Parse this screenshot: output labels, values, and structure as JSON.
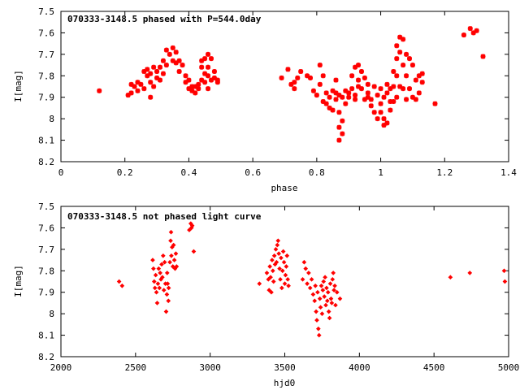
{
  "colors": {
    "points": "#ff0000",
    "axes": "#000000",
    "background": "#ffffff"
  },
  "chart_data": [
    {
      "type": "scatter",
      "title": "070333-3148.5 phased with P=544.0day",
      "xlabel": "phase",
      "ylabel": "I[mag]",
      "xlim": [
        0,
        1.4
      ],
      "ylim": [
        7.5,
        8.2
      ],
      "y_inverted": true,
      "grid": false,
      "x_ticks": [
        "0",
        "0.2",
        "0.4",
        "0.6",
        "0.8",
        "1",
        "1.2",
        "1.4"
      ],
      "y_ticks": [
        "7.5",
        "7.6",
        "7.7",
        "7.8",
        "7.9",
        "8",
        "8.1",
        "8.2"
      ],
      "marker": "star",
      "points": [
        [
          0.12,
          7.87
        ],
        [
          0.21,
          7.89
        ],
        [
          0.22,
          7.84
        ],
        [
          0.22,
          7.88
        ],
        [
          0.23,
          7.85
        ],
        [
          0.24,
          7.83
        ],
        [
          0.24,
          7.87
        ],
        [
          0.25,
          7.84
        ],
        [
          0.26,
          7.78
        ],
        [
          0.26,
          7.86
        ],
        [
          0.27,
          7.77
        ],
        [
          0.27,
          7.8
        ],
        [
          0.28,
          7.79
        ],
        [
          0.28,
          7.83
        ],
        [
          0.28,
          7.9
        ],
        [
          0.29,
          7.76
        ],
        [
          0.29,
          7.85
        ],
        [
          0.3,
          7.78
        ],
        [
          0.3,
          7.81
        ],
        [
          0.31,
          7.76
        ],
        [
          0.31,
          7.82
        ],
        [
          0.32,
          7.73
        ],
        [
          0.32,
          7.79
        ],
        [
          0.33,
          7.68
        ],
        [
          0.33,
          7.75
        ],
        [
          0.34,
          7.7
        ],
        [
          0.35,
          7.67
        ],
        [
          0.35,
          7.73
        ],
        [
          0.36,
          7.69
        ],
        [
          0.36,
          7.74
        ],
        [
          0.37,
          7.73
        ],
        [
          0.37,
          7.78
        ],
        [
          0.38,
          7.75
        ],
        [
          0.39,
          7.8
        ],
        [
          0.39,
          7.83
        ],
        [
          0.4,
          7.82
        ],
        [
          0.4,
          7.86
        ],
        [
          0.41,
          7.85
        ],
        [
          0.41,
          7.87
        ],
        [
          0.42,
          7.85
        ],
        [
          0.42,
          7.88
        ],
        [
          0.43,
          7.86
        ],
        [
          0.43,
          7.84
        ],
        [
          0.44,
          7.82
        ],
        [
          0.44,
          7.76
        ],
        [
          0.44,
          7.73
        ],
        [
          0.45,
          7.79
        ],
        [
          0.45,
          7.72
        ],
        [
          0.45,
          7.83
        ],
        [
          0.46,
          7.7
        ],
        [
          0.46,
          7.76
        ],
        [
          0.46,
          7.8
        ],
        [
          0.46,
          7.86
        ],
        [
          0.47,
          7.72
        ],
        [
          0.47,
          7.82
        ],
        [
          0.48,
          7.78
        ],
        [
          0.48,
          7.81
        ],
        [
          0.49,
          7.82
        ],
        [
          0.49,
          7.83
        ],
        [
          0.69,
          7.81
        ],
        [
          0.71,
          7.77
        ],
        [
          0.72,
          7.84
        ],
        [
          0.73,
          7.86
        ],
        [
          0.73,
          7.83
        ],
        [
          0.74,
          7.81
        ],
        [
          0.75,
          7.78
        ],
        [
          0.77,
          7.8
        ],
        [
          0.78,
          7.81
        ],
        [
          0.79,
          7.87
        ],
        [
          0.8,
          7.89
        ],
        [
          0.81,
          7.75
        ],
        [
          0.81,
          7.84
        ],
        [
          0.82,
          7.92
        ],
        [
          0.82,
          7.8
        ],
        [
          0.83,
          7.88
        ],
        [
          0.83,
          7.93
        ],
        [
          0.84,
          7.9
        ],
        [
          0.84,
          7.95
        ],
        [
          0.85,
          7.87
        ],
        [
          0.85,
          7.96
        ],
        [
          0.86,
          7.88
        ],
        [
          0.86,
          7.91
        ],
        [
          0.86,
          7.82
        ],
        [
          0.87,
          7.89
        ],
        [
          0.87,
          7.97
        ],
        [
          0.87,
          8.04
        ],
        [
          0.87,
          8.1
        ],
        [
          0.88,
          7.9
        ],
        [
          0.88,
          8.01
        ],
        [
          0.88,
          8.07
        ],
        [
          0.89,
          7.87
        ],
        [
          0.89,
          7.93
        ],
        [
          0.9,
          7.9
        ],
        [
          0.9,
          7.88
        ],
        [
          0.91,
          7.86
        ],
        [
          0.91,
          7.8
        ],
        [
          0.92,
          7.89
        ],
        [
          0.92,
          7.76
        ],
        [
          0.92,
          7.91
        ],
        [
          0.93,
          7.75
        ],
        [
          0.93,
          7.82
        ],
        [
          0.93,
          7.85
        ],
        [
          0.94,
          7.78
        ],
        [
          0.94,
          7.86
        ],
        [
          0.95,
          7.91
        ],
        [
          0.95,
          7.81
        ],
        [
          0.96,
          7.9
        ],
        [
          0.96,
          7.84
        ],
        [
          0.96,
          7.88
        ],
        [
          0.97,
          7.91
        ],
        [
          0.97,
          7.94
        ],
        [
          0.98,
          7.85
        ],
        [
          0.98,
          7.97
        ],
        [
          0.99,
          7.89
        ],
        [
          0.99,
          8.0
        ],
        [
          1.0,
          7.86
        ],
        [
          1.0,
          7.93
        ],
        [
          1.0,
          7.97
        ],
        [
          1.01,
          7.9
        ],
        [
          1.01,
          8.0
        ],
        [
          1.01,
          8.03
        ],
        [
          1.02,
          7.84
        ],
        [
          1.02,
          7.88
        ],
        [
          1.02,
          8.02
        ],
        [
          1.03,
          7.86
        ],
        [
          1.03,
          7.92
        ],
        [
          1.03,
          7.96
        ],
        [
          1.04,
          7.78
        ],
        [
          1.04,
          7.85
        ],
        [
          1.04,
          7.92
        ],
        [
          1.05,
          7.66
        ],
        [
          1.05,
          7.72
        ],
        [
          1.05,
          7.8
        ],
        [
          1.05,
          7.9
        ],
        [
          1.06,
          7.62
        ],
        [
          1.06,
          7.69
        ],
        [
          1.06,
          7.85
        ],
        [
          1.07,
          7.63
        ],
        [
          1.07,
          7.75
        ],
        [
          1.07,
          7.86
        ],
        [
          1.08,
          7.7
        ],
        [
          1.08,
          7.8
        ],
        [
          1.08,
          7.91
        ],
        [
          1.09,
          7.72
        ],
        [
          1.09,
          7.86
        ],
        [
          1.1,
          7.75
        ],
        [
          1.1,
          7.9
        ],
        [
          1.11,
          7.91
        ],
        [
          1.11,
          7.82
        ],
        [
          1.12,
          7.8
        ],
        [
          1.12,
          7.88
        ],
        [
          1.13,
          7.79
        ],
        [
          1.13,
          7.83
        ],
        [
          1.17,
          7.93
        ],
        [
          1.26,
          7.61
        ],
        [
          1.28,
          7.58
        ],
        [
          1.29,
          7.6
        ],
        [
          1.3,
          7.59
        ],
        [
          1.32,
          7.71
        ]
      ]
    },
    {
      "type": "scatter",
      "title": "070333-3148.5 not phased light curve",
      "xlabel": "hjd0",
      "ylabel": "I[mag]",
      "xlim": [
        2000,
        5000
      ],
      "ylim": [
        7.5,
        8.2
      ],
      "y_inverted": true,
      "grid": false,
      "x_ticks": [
        "2000",
        "2500",
        "3000",
        "3500",
        "4000",
        "4500",
        "5000"
      ],
      "y_ticks": [
        "7.5",
        "7.6",
        "7.7",
        "7.8",
        "7.9",
        "8",
        "8.1",
        "8.2"
      ],
      "marker": "diamond",
      "points": [
        [
          2390,
          7.85
        ],
        [
          2410,
          7.87
        ],
        [
          2615,
          7.75
        ],
        [
          2620,
          7.79
        ],
        [
          2625,
          7.85
        ],
        [
          2630,
          7.88
        ],
        [
          2635,
          7.82
        ],
        [
          2640,
          7.9
        ],
        [
          2645,
          7.95
        ],
        [
          2650,
          7.86
        ],
        [
          2655,
          7.79
        ],
        [
          2660,
          7.88
        ],
        [
          2665,
          7.81
        ],
        [
          2670,
          7.84
        ],
        [
          2675,
          7.77
        ],
        [
          2680,
          7.83
        ],
        [
          2685,
          7.73
        ],
        [
          2690,
          7.89
        ],
        [
          2695,
          7.76
        ],
        [
          2700,
          7.86
        ],
        [
          2705,
          7.99
        ],
        [
          2710,
          7.91
        ],
        [
          2712,
          7.81
        ],
        [
          2715,
          7.86
        ],
        [
          2720,
          7.94
        ],
        [
          2722,
          7.88
        ],
        [
          2730,
          7.76
        ],
        [
          2735,
          7.66
        ],
        [
          2738,
          7.62
        ],
        [
          2740,
          7.73
        ],
        [
          2745,
          7.69
        ],
        [
          2750,
          7.78
        ],
        [
          2755,
          7.68
        ],
        [
          2760,
          7.75
        ],
        [
          2765,
          7.79
        ],
        [
          2770,
          7.72
        ],
        [
          2775,
          7.78
        ],
        [
          2860,
          7.61
        ],
        [
          2870,
          7.58
        ],
        [
          2875,
          7.6
        ],
        [
          2880,
          7.59
        ],
        [
          2890,
          7.71
        ],
        [
          3330,
          7.86
        ],
        [
          3380,
          7.81
        ],
        [
          3390,
          7.84
        ],
        [
          3395,
          7.89
        ],
        [
          3400,
          7.78
        ],
        [
          3405,
          7.83
        ],
        [
          3410,
          7.9
        ],
        [
          3415,
          7.75
        ],
        [
          3420,
          7.8
        ],
        [
          3425,
          7.85
        ],
        [
          3430,
          7.73
        ],
        [
          3435,
          7.77
        ],
        [
          3440,
          7.7
        ],
        [
          3445,
          7.76
        ],
        [
          3450,
          7.68
        ],
        [
          3455,
          7.66
        ],
        [
          3460,
          7.72
        ],
        [
          3465,
          7.79
        ],
        [
          3470,
          7.84
        ],
        [
          3475,
          7.74
        ],
        [
          3480,
          7.88
        ],
        [
          3485,
          7.8
        ],
        [
          3490,
          7.71
        ],
        [
          3495,
          7.76
        ],
        [
          3500,
          7.86
        ],
        [
          3505,
          7.82
        ],
        [
          3510,
          7.78
        ],
        [
          3515,
          7.73
        ],
        [
          3520,
          7.84
        ],
        [
          3525,
          7.87
        ],
        [
          3620,
          7.84
        ],
        [
          3630,
          7.76
        ],
        [
          3640,
          7.79
        ],
        [
          3650,
          7.86
        ],
        [
          3660,
          7.81
        ],
        [
          3670,
          7.88
        ],
        [
          3680,
          7.84
        ],
        [
          3690,
          7.91
        ],
        [
          3700,
          7.94
        ],
        [
          3705,
          7.87
        ],
        [
          3710,
          7.99
        ],
        [
          3715,
          8.03
        ],
        [
          3720,
          7.9
        ],
        [
          3725,
          8.07
        ],
        [
          3730,
          8.1
        ],
        [
          3735,
          7.93
        ],
        [
          3740,
          7.97
        ],
        [
          3745,
          7.87
        ],
        [
          3750,
          8.0
        ],
        [
          3755,
          7.89
        ],
        [
          3760,
          7.85
        ],
        [
          3765,
          7.92
        ],
        [
          3770,
          7.83
        ],
        [
          3775,
          7.96
        ],
        [
          3780,
          7.88
        ],
        [
          3785,
          7.94
        ],
        [
          3790,
          7.9
        ],
        [
          3795,
          7.99
        ],
        [
          3800,
          8.02
        ],
        [
          3805,
          7.86
        ],
        [
          3810,
          7.93
        ],
        [
          3815,
          7.95
        ],
        [
          3820,
          7.84
        ],
        [
          3825,
          7.81
        ],
        [
          3830,
          7.89
        ],
        [
          3835,
          7.87
        ],
        [
          3840,
          7.96
        ],
        [
          3850,
          7.9
        ],
        [
          3870,
          7.93
        ],
        [
          4610,
          7.83
        ],
        [
          4740,
          7.81
        ],
        [
          4970,
          7.8
        ],
        [
          4975,
          7.85
        ]
      ]
    }
  ]
}
